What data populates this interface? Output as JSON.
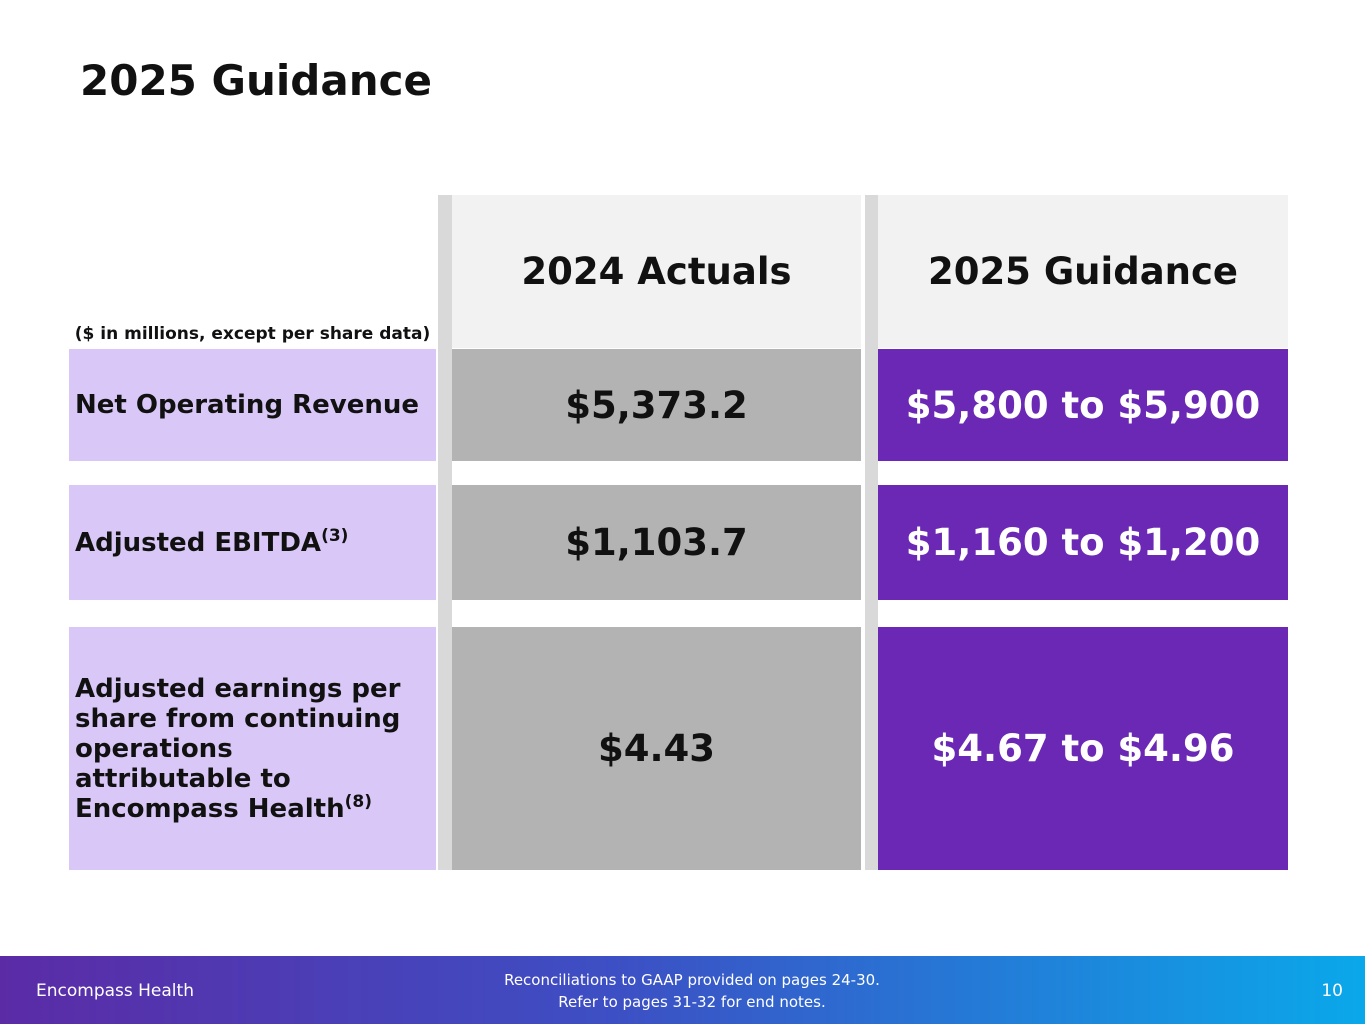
{
  "header": {
    "title": "2025 Guidance"
  },
  "table": {
    "unit_note": "($ in millions, except per share data)",
    "columns": [
      "2024 Actuals",
      "2025 Guidance"
    ],
    "rows": [
      {
        "label": "Net Operating Revenue",
        "footnote": null,
        "actual": "$5,373.2",
        "guidance": "$5,800 to $5,900"
      },
      {
        "label": "Adjusted EBITDA",
        "footnote": "(3)",
        "actual": "$1,103.7",
        "guidance": "$1,160 to $1,200"
      },
      {
        "label": "Adjusted earnings per share from continuing operations attributable to Encompass Health",
        "footnote": "(8)",
        "actual": "$4.43",
        "guidance": "$4.67 to $4.96"
      }
    ]
  },
  "footer": {
    "company": "Encompass Health",
    "note_lines": [
      "Reconciliations to GAAP provided on pages 24-30.",
      "Refer to pages 31-32 for end notes."
    ],
    "page": "10"
  }
}
